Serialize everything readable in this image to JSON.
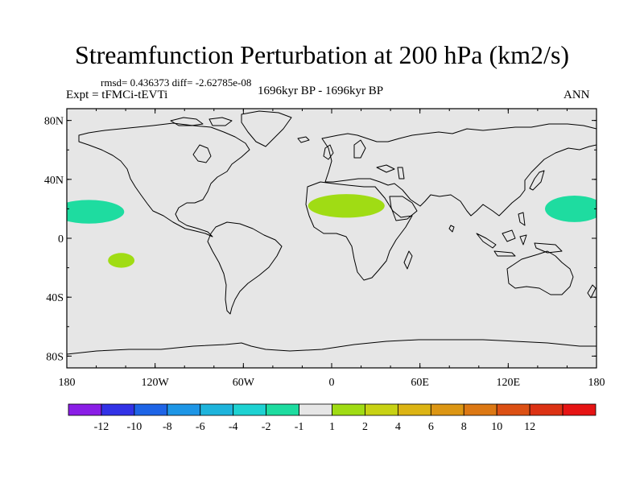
{
  "title": "Streamfunction Perturbation at 200 hPa (km2/s)",
  "stats_line": "rmsd= 0.436373 diff= -2.62785e-08",
  "experiment": "Expt = tFMCi-tEVTi",
  "period": "1696kyr BP - 1696kyr BP",
  "season": "ANN",
  "lat_ticks": [
    {
      "lat": 80,
      "label": "80N"
    },
    {
      "lat": 40,
      "label": "40N"
    },
    {
      "lat": 0,
      "label": "0"
    },
    {
      "lat": -40,
      "label": "40S"
    },
    {
      "lat": -80,
      "label": "80S"
    }
  ],
  "lon_ticks": [
    {
      "lon": -180,
      "label": "180"
    },
    {
      "lon": -120,
      "label": "120W"
    },
    {
      "lon": -60,
      "label": "60W"
    },
    {
      "lon": 0,
      "label": "0"
    },
    {
      "lon": 60,
      "label": "60E"
    },
    {
      "lon": 120,
      "label": "120E"
    },
    {
      "lon": 180,
      "label": "180"
    }
  ],
  "colorbar": {
    "colors": [
      "#8a1ee6",
      "#3232e6",
      "#1e64e6",
      "#1e96e6",
      "#1eb4dc",
      "#1ed2d2",
      "#1edca0",
      "#e6e6e6",
      "#a0dc14",
      "#c8d214",
      "#dcb414",
      "#dc9614",
      "#dc7814",
      "#dc5014",
      "#dc3214",
      "#e61414"
    ],
    "labels": [
      "-12",
      "-10",
      "-8",
      "-6",
      "-4",
      "-2",
      "-1",
      "1",
      "2",
      "4",
      "6",
      "8",
      "10",
      "12"
    ]
  },
  "anomalies": [
    {
      "name": "north-pacific-west",
      "lon": -165,
      "lat": 18,
      "rlon": 24,
      "rlat": 8,
      "color": "#1edca0"
    },
    {
      "name": "north-pacific-east",
      "lon": 165,
      "lat": 20,
      "rlon": 20,
      "rlat": 9,
      "color": "#1edca0"
    },
    {
      "name": "sahara",
      "lon": 10,
      "lat": 22,
      "rlon": 26,
      "rlat": 8,
      "color": "#a0dc14"
    },
    {
      "name": "south-pacific",
      "lon": -143,
      "lat": -15,
      "rlon": 9,
      "rlat": 5,
      "color": "#a0dc14"
    }
  ]
}
